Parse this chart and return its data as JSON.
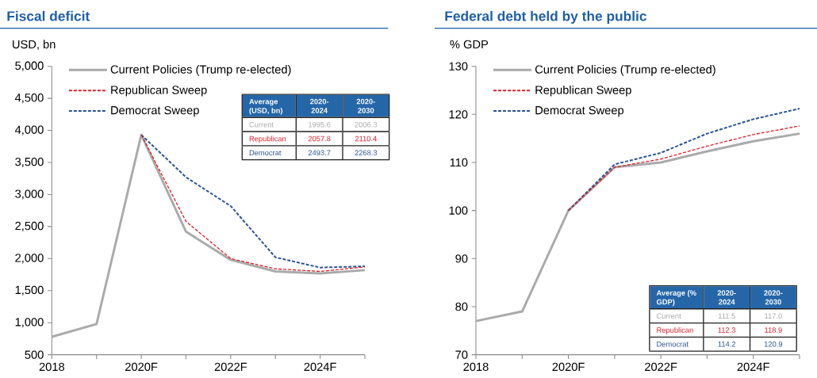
{
  "chart_data": [
    {
      "type": "line",
      "title": "Fiscal deficit",
      "ylabel": "USD, bn",
      "legend": "top left",
      "x": [
        2018,
        2019,
        2020,
        2021,
        2022,
        2023,
        2024,
        2025
      ],
      "xlim": [
        2018,
        2025
      ],
      "xticks": [
        2018,
        {
          "value": 2019,
          "label": null
        },
        {
          "value": 2020,
          "label": "2020F"
        },
        {
          "value": 2021,
          "label": null
        },
        {
          "value": 2022,
          "label": "2022F"
        },
        {
          "value": 2023,
          "label": null
        },
        {
          "value": 2024,
          "label": "2024F"
        },
        {
          "value": 2025,
          "label": null
        }
      ],
      "ylim": [
        500,
        5000
      ],
      "yticks": [
        500,
        {
          "value": 1000,
          "label": "1,000"
        },
        {
          "value": 1500,
          "label": "1,500"
        },
        {
          "value": 2000,
          "label": "2,000"
        },
        {
          "value": 2500,
          "label": "2,500"
        },
        {
          "value": 3000,
          "label": "3,000"
        },
        {
          "value": 3500,
          "label": "3,500"
        },
        {
          "value": 4000,
          "label": "4,000"
        },
        {
          "value": 4500,
          "label": "4,500"
        },
        {
          "value": 5000,
          "label": "5,000"
        }
      ],
      "series": [
        {
          "name": "Current Policies (Trump re-elected)",
          "color": "#aaaaaa",
          "line_style": "solid",
          "values": [
            780,
            980,
            3930,
            2420,
            1980,
            1800,
            1770,
            1820
          ]
        },
        {
          "name": "Republican Sweep",
          "color": "#e0202a",
          "line_style": "dashed",
          "values": [
            null,
            null,
            3930,
            2580,
            2000,
            1840,
            1800,
            1870
          ]
        },
        {
          "name": "Democrat Sweep",
          "color": "#2a5599",
          "line_style": "dashed",
          "values": [
            null,
            null,
            3930,
            3270,
            2820,
            2020,
            1860,
            1880
          ]
        }
      ],
      "annotations": [
        "Average (USD, bn)",
        "2020-2024",
        "2020-2030",
        "Current",
        "1995.6",
        "2006.3",
        "Republican",
        "2057.8",
        "2110.4",
        "Democrat",
        "2493.7",
        "2268.3"
      ]
    },
    {
      "type": "line",
      "title": "Federal debt held by the public",
      "ylabel": "% GDP",
      "legend": "top left",
      "x": [
        2018,
        2019,
        2020,
        2021,
        2022,
        2023,
        2024,
        2025
      ],
      "xlim": [
        2018,
        2025
      ],
      "xticks": [
        2018,
        {
          "value": 2019,
          "label": null
        },
        {
          "value": 2020,
          "label": "2020F"
        },
        {
          "value": 2021,
          "label": null
        },
        {
          "value": 2022,
          "label": "2022F"
        },
        {
          "value": 2023,
          "label": null
        },
        {
          "value": 2024,
          "label": "2024F"
        },
        {
          "value": 2025,
          "label": null
        }
      ],
      "ylim": [
        70,
        130
      ],
      "yticks": [
        70,
        80,
        90,
        100,
        110,
        120,
        130
      ],
      "series": [
        {
          "name": "Current Policies (Trump re-elected)",
          "color": "#aaaaaa",
          "line_style": "solid",
          "values": [
            77,
            79,
            100,
            109,
            110,
            112.3,
            114.4,
            116
          ]
        },
        {
          "name": "Republican Sweep",
          "color": "#e0202a",
          "line_style": "dashed",
          "values": [
            null,
            null,
            100,
            109,
            110.7,
            113.4,
            115.8,
            117.6
          ]
        },
        {
          "name": "Democrat Sweep",
          "color": "#2a5599",
          "line_style": "dashed",
          "values": [
            null,
            null,
            100,
            109.6,
            112,
            116,
            119,
            121.2
          ]
        }
      ],
      "annotations": [
        "Average (% GDP)",
        "2020-2024",
        "2020-2030",
        "Current",
        "111.5",
        "117.0",
        "Republican",
        "112.3",
        "118.9",
        "Democrat",
        "114.2",
        "120.9"
      ]
    }
  ]
}
